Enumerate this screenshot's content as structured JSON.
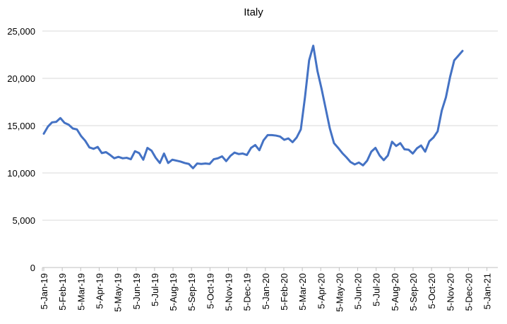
{
  "chart_data": {
    "type": "line",
    "title": "Italy",
    "xlabel": "",
    "ylabel": "",
    "ylim": [
      0,
      25000
    ],
    "y_ticks": [
      0,
      5000,
      10000,
      15000,
      20000,
      25000
    ],
    "y_tick_labels": [
      "0",
      "5,000",
      "10,000",
      "15,000",
      "20,000",
      "25,000"
    ],
    "x_tick_labels": [
      "5-Jan-19",
      "5-Feb-19",
      "5-Mar-19",
      "5-Apr-19",
      "5-May-19",
      "5-Jun-19",
      "5-Jul-19",
      "5-Aug-19",
      "5-Sep-19",
      "5-Oct-19",
      "5-Nov-19",
      "5-Dec-19",
      "5-Jan-20",
      "5-Feb-20",
      "5-Mar-20",
      "5-Apr-20",
      "5-May-20",
      "5-Jun-20",
      "5-Jul-20",
      "5-Aug-20",
      "5-Sep-20",
      "5-Oct-20",
      "5-Nov-20",
      "5-Dec-20",
      "5-Jan-21"
    ],
    "legend": "none",
    "grid": "horizontal",
    "series": [
      {
        "name": "Italy",
        "color": "#4472c4",
        "values": [
          14150,
          14900,
          15350,
          15400,
          15800,
          15300,
          15100,
          14700,
          14600,
          13900,
          13400,
          12700,
          12550,
          12750,
          12100,
          12200,
          11900,
          11550,
          11700,
          11550,
          11600,
          11450,
          12300,
          12100,
          11400,
          12650,
          12350,
          11600,
          11050,
          12050,
          11050,
          11400,
          11300,
          11200,
          11050,
          10950,
          10500,
          11000,
          10950,
          11000,
          10950,
          11450,
          11550,
          11750,
          11250,
          11800,
          12150,
          12000,
          12050,
          11900,
          12650,
          12950,
          12400,
          13450,
          14000,
          14000,
          13950,
          13850,
          13500,
          13650,
          13250,
          13750,
          14600,
          18000,
          21900,
          23450,
          20800,
          18900,
          16800,
          14700,
          13150,
          12650,
          12100,
          11650,
          11150,
          10900,
          11100,
          10800,
          11300,
          12250,
          12650,
          11850,
          11350,
          11850,
          13300,
          12850,
          13150,
          12500,
          12450,
          12050,
          12600,
          12900,
          12250,
          13350,
          13750,
          14400,
          16600,
          18000,
          20150,
          21900,
          22400,
          22900
        ]
      }
    ]
  }
}
